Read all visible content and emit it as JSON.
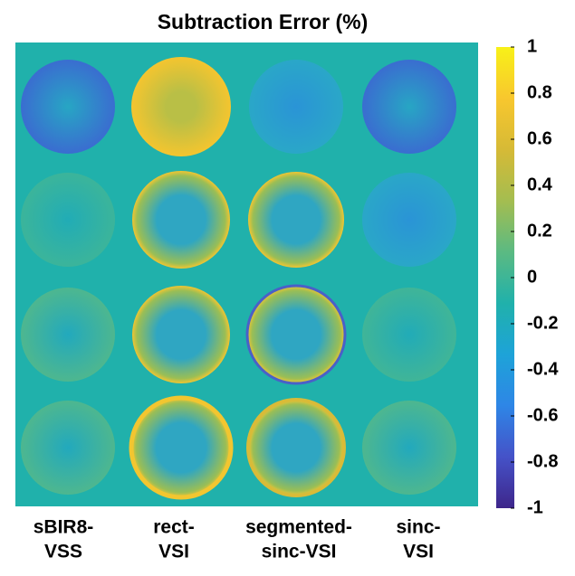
{
  "chart_data": {
    "type": "image",
    "title": "Subtraction Error (%)",
    "columns": [
      [
        "sBIR8-",
        "VSS"
      ],
      [
        "rect-",
        "VSI"
      ],
      [
        "segmented-",
        "sinc-VSI"
      ],
      [
        "sinc-",
        "VSI"
      ]
    ],
    "colorbar": {
      "clim": [
        -1,
        1
      ],
      "ticks": [
        1,
        0.8,
        0.6,
        0.4,
        0.2,
        0,
        -0.2,
        -0.4,
        -0.6,
        -0.8,
        -1
      ],
      "colormap": [
        "#3e268a",
        "#4552c8",
        "#2e86e6",
        "#1ea3d8",
        "#20b1ab",
        "#5bba82",
        "#a4bd50",
        "#d6ba36",
        "#f8c72e",
        "#f8f118"
      ]
    }
  }
}
